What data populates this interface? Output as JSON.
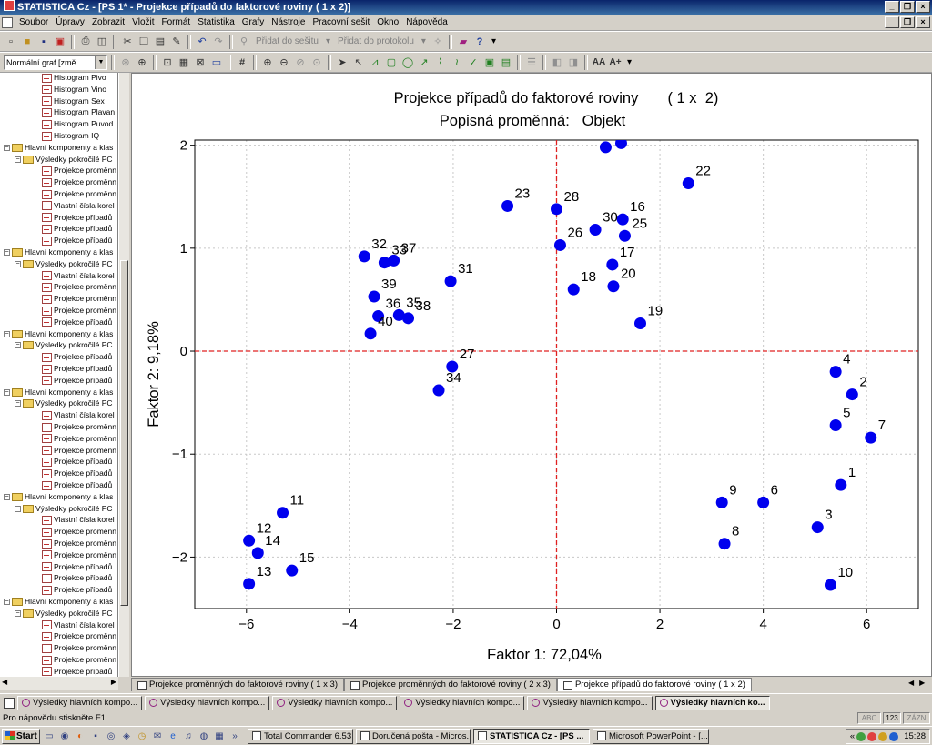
{
  "window": {
    "title": "STATISTICA Cz - [PS 1* - Projekce případů do faktorové roviny     ( 1 x  2)]"
  },
  "menu": [
    "Soubor",
    "Úpravy",
    "Zobrazit",
    "Vložit",
    "Formát",
    "Statistika",
    "Grafy",
    "Nástroje",
    "Pracovní sešit",
    "Okno",
    "Nápověda"
  ],
  "toolbar": {
    "add_to_workbook": "Přidat do sešitu",
    "add_to_report": "Přidat do protokolu",
    "graph_type": "Normální graf [změ..."
  },
  "tree": {
    "items": [
      {
        "level": 3,
        "kind": "leaf",
        "label": "Histogram Pivo"
      },
      {
        "level": 3,
        "kind": "leaf",
        "label": "Histogram Vino"
      },
      {
        "level": 3,
        "kind": "leaf",
        "label": "Histogram Sex"
      },
      {
        "level": 3,
        "kind": "leaf",
        "label": "Histogram Plavan"
      },
      {
        "level": 3,
        "kind": "leaf",
        "label": "Histogram Puvod"
      },
      {
        "level": 3,
        "kind": "leaf",
        "label": "Histogram IQ"
      },
      {
        "level": 1,
        "kind": "folder",
        "label": "Hlavní komponenty a klas"
      },
      {
        "level": 2,
        "kind": "folder",
        "label": "Výsledky pokročilé PC"
      },
      {
        "level": 3,
        "kind": "leaf",
        "label": "Projekce proměnn"
      },
      {
        "level": 3,
        "kind": "leaf",
        "label": "Projekce proměnn"
      },
      {
        "level": 3,
        "kind": "leaf",
        "label": "Projekce proměnn"
      },
      {
        "level": 3,
        "kind": "leaf",
        "label": "Vlastní čísla korel"
      },
      {
        "level": 3,
        "kind": "leaf",
        "label": "Projekce případů"
      },
      {
        "level": 3,
        "kind": "leaf",
        "label": "Projekce případů"
      },
      {
        "level": 3,
        "kind": "leaf",
        "label": "Projekce případů"
      },
      {
        "level": 1,
        "kind": "folder",
        "label": "Hlavní komponenty a klas"
      },
      {
        "level": 2,
        "kind": "folder",
        "label": "Výsledky pokročilé PC"
      },
      {
        "level": 3,
        "kind": "leaf",
        "label": "Vlastní čísla korel"
      },
      {
        "level": 3,
        "kind": "leaf",
        "label": "Projekce proměnn"
      },
      {
        "level": 3,
        "kind": "leaf",
        "label": "Projekce proměnn"
      },
      {
        "level": 3,
        "kind": "leaf",
        "label": "Projekce proměnn"
      },
      {
        "level": 3,
        "kind": "leaf",
        "label": "Projekce případů"
      },
      {
        "level": 1,
        "kind": "folder",
        "label": "Hlavní komponenty a klas"
      },
      {
        "level": 2,
        "kind": "folder",
        "label": "Výsledky pokročilé PC"
      },
      {
        "level": 3,
        "kind": "leaf",
        "label": "Projekce případů"
      },
      {
        "level": 3,
        "kind": "leaf",
        "label": "Projekce případů"
      },
      {
        "level": 3,
        "kind": "leaf",
        "label": "Projekce případů"
      },
      {
        "level": 1,
        "kind": "folder",
        "label": "Hlavní komponenty a klas"
      },
      {
        "level": 2,
        "kind": "folder",
        "label": "Výsledky pokročilé PC"
      },
      {
        "level": 3,
        "kind": "leaf",
        "label": "Vlastní čísla korel"
      },
      {
        "level": 3,
        "kind": "leaf",
        "label": "Projekce proměnn"
      },
      {
        "level": 3,
        "kind": "leaf",
        "label": "Projekce proměnn"
      },
      {
        "level": 3,
        "kind": "leaf",
        "label": "Projekce proměnn"
      },
      {
        "level": 3,
        "kind": "leaf",
        "label": "Projekce případů"
      },
      {
        "level": 3,
        "kind": "leaf",
        "label": "Projekce případů"
      },
      {
        "level": 3,
        "kind": "leaf",
        "label": "Projekce případů"
      },
      {
        "level": 1,
        "kind": "folder",
        "label": "Hlavní komponenty a klas"
      },
      {
        "level": 2,
        "kind": "folder",
        "label": "Výsledky pokročilé PC"
      },
      {
        "level": 3,
        "kind": "leaf",
        "label": "Vlastní čísla korel"
      },
      {
        "level": 3,
        "kind": "leaf",
        "label": "Projekce proměnn"
      },
      {
        "level": 3,
        "kind": "leaf",
        "label": "Projekce proměnn"
      },
      {
        "level": 3,
        "kind": "leaf",
        "label": "Projekce proměnn"
      },
      {
        "level": 3,
        "kind": "leaf",
        "label": "Projekce případů"
      },
      {
        "level": 3,
        "kind": "leaf",
        "label": "Projekce případů"
      },
      {
        "level": 3,
        "kind": "leaf",
        "label": "Projekce případů"
      },
      {
        "level": 1,
        "kind": "folder",
        "label": "Hlavní komponenty a klas"
      },
      {
        "level": 2,
        "kind": "folder",
        "label": "Výsledky pokročilé PC"
      },
      {
        "level": 3,
        "kind": "leaf",
        "label": "Vlastní čísla korel"
      },
      {
        "level": 3,
        "kind": "leaf",
        "label": "Projekce proměnn"
      },
      {
        "level": 3,
        "kind": "leaf",
        "label": "Projekce proměnn"
      },
      {
        "level": 3,
        "kind": "leaf",
        "label": "Projekce proměnn"
      },
      {
        "level": 3,
        "kind": "leaf",
        "label": "Projekce případů"
      },
      {
        "level": 3,
        "kind": "leaf",
        "label": "Projekce případů"
      }
    ]
  },
  "chart_data": {
    "type": "scatter",
    "title": "Projekce případů do faktorové roviny       ( 1 x  2)",
    "subtitle": "Popisná proměnná:   Objekt",
    "xlabel": "Faktor 1: 72,04%",
    "ylabel": "Faktor 2: 9,18%",
    "xlim": [
      -7,
      7
    ],
    "ylim": [
      -2.5,
      2.05
    ],
    "xticks": [
      -6,
      -4,
      -2,
      0,
      2,
      4,
      6
    ],
    "yticks": [
      -2,
      -1,
      0,
      1,
      2
    ],
    "grid": true,
    "reference_lines": {
      "x": 0,
      "y": 0,
      "style": "dashed",
      "color": "#e02020"
    },
    "point_color": "#0000ee",
    "points": [
      {
        "label": "1",
        "x": 5.5,
        "y": -1.3
      },
      {
        "label": "2",
        "x": 5.72,
        "y": -0.42
      },
      {
        "label": "3",
        "x": 5.05,
        "y": -1.71
      },
      {
        "label": "4",
        "x": 5.4,
        "y": -0.2
      },
      {
        "label": "5",
        "x": 5.4,
        "y": -0.72
      },
      {
        "label": "6",
        "x": 4.0,
        "y": -1.47
      },
      {
        "label": "7",
        "x": 6.08,
        "y": -0.84
      },
      {
        "label": "8",
        "x": 3.25,
        "y": -1.87
      },
      {
        "label": "9",
        "x": 3.2,
        "y": -1.47
      },
      {
        "label": "10",
        "x": 5.3,
        "y": -2.27
      },
      {
        "label": "11",
        "x": -5.3,
        "y": -1.57
      },
      {
        "label": "12",
        "x": -5.95,
        "y": -1.84
      },
      {
        "label": "13",
        "x": -5.95,
        "y": -2.26
      },
      {
        "label": "14",
        "x": -5.78,
        "y": -1.96
      },
      {
        "label": "15",
        "x": -5.12,
        "y": -2.13
      },
      {
        "label": "16",
        "x": 1.28,
        "y": 1.28
      },
      {
        "label": "17",
        "x": 1.08,
        "y": 0.84
      },
      {
        "label": "18",
        "x": 0.33,
        "y": 0.6
      },
      {
        "label": "19",
        "x": 1.62,
        "y": 0.27
      },
      {
        "label": "20",
        "x": 1.1,
        "y": 0.63
      },
      {
        "label": "22",
        "x": 2.55,
        "y": 1.63
      },
      {
        "label": "23",
        "x": -0.95,
        "y": 1.41
      },
      {
        "label": "25",
        "x": 1.32,
        "y": 1.12
      },
      {
        "label": "26",
        "x": 0.07,
        "y": 1.03
      },
      {
        "label": "27",
        "x": -2.02,
        "y": -0.15
      },
      {
        "label": "28",
        "x": 0.0,
        "y": 1.38
      },
      {
        "label": "30",
        "x": 0.75,
        "y": 1.18
      },
      {
        "label": "31",
        "x": -2.05,
        "y": 0.68
      },
      {
        "label": "32",
        "x": -3.72,
        "y": 0.92
      },
      {
        "label": "33",
        "x": -3.33,
        "y": 0.86
      },
      {
        "label": "34",
        "x": -2.28,
        "y": -0.38
      },
      {
        "label": "35",
        "x": -3.05,
        "y": 0.35
      },
      {
        "label": "36",
        "x": -3.45,
        "y": 0.34
      },
      {
        "label": "37",
        "x": -3.15,
        "y": 0.88
      },
      {
        "label": "38",
        "x": -2.87,
        "y": 0.32
      },
      {
        "label": "39",
        "x": -3.53,
        "y": 0.53
      },
      {
        "label": "40",
        "x": -3.6,
        "y": 0.17
      },
      {
        "label": "",
        "x": 0.95,
        "y": 1.98
      },
      {
        "label": "",
        "x": 1.25,
        "y": 2.02
      }
    ]
  },
  "doc_tabs": [
    {
      "label": "Projekce proměnných do faktorové roviny       ( 1 x  3)",
      "active": false
    },
    {
      "label": "Projekce proměnných do faktorové roviny       ( 2 x  3)",
      "active": false
    },
    {
      "label": "Projekce případů do faktorové roviny       ( 1 x  2)",
      "active": true
    }
  ],
  "workspace_buttons": [
    {
      "label": "Výsledky hlavních kompo...",
      "active": false
    },
    {
      "label": "Výsledky hlavních kompo...",
      "active": false
    },
    {
      "label": "Výsledky hlavních kompo...",
      "active": false
    },
    {
      "label": "Výsledky hlavních kompo...",
      "active": false
    },
    {
      "label": "Výsledky hlavních kompo...",
      "active": false
    },
    {
      "label": "Výsledky hlavních ko...",
      "active": true
    }
  ],
  "status": {
    "help": "Pro nápovědu stiskněte F1",
    "abc": "ABC",
    "num": "123",
    "rec": "ZÁZN"
  },
  "taskbar": {
    "start": "Start",
    "tasks": [
      {
        "label": "Total Commander 6.53 - ...",
        "active": false
      },
      {
        "label": "Doručená pošta - Micros...",
        "active": false
      },
      {
        "label": "STATISTICA Cz - [PS ...",
        "active": true
      },
      {
        "label": "Microsoft PowerPoint - [...",
        "active": false
      }
    ],
    "clock": "15:28"
  }
}
